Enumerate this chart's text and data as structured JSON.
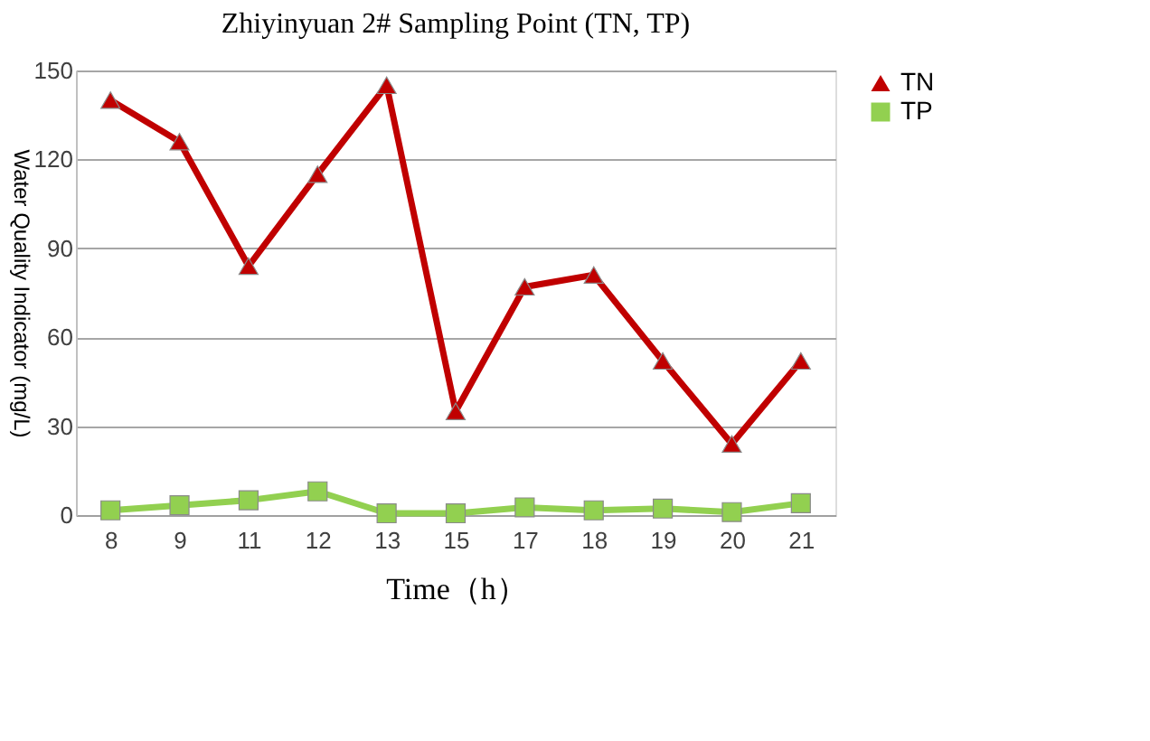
{
  "chart_data": {
    "type": "line",
    "title": "Zhiyinyuan 2# Sampling Point (TN, TP)",
    "xlabel": "Time（h）",
    "ylabel": "Water Quality Indicator (mg/L)",
    "categories": [
      "8",
      "9",
      "11",
      "12",
      "13",
      "15",
      "17",
      "18",
      "19",
      "20",
      "21"
    ],
    "series": [
      {
        "name": "TN",
        "color": "#c00000",
        "marker": "triangle",
        "values": [
          140,
          126,
          84,
          115,
          145,
          35,
          77,
          81,
          52,
          24,
          52
        ]
      },
      {
        "name": "TP",
        "color": "#92d050",
        "marker": "square",
        "values": [
          1.6,
          3.3,
          5,
          8,
          0.6,
          0.6,
          2.6,
          1.6,
          2.2,
          1,
          4
        ]
      }
    ],
    "ylim": [
      0,
      150
    ],
    "yticks": [
      0,
      30,
      60,
      90,
      120,
      150
    ],
    "grid": "y",
    "legend": "right",
    "line_style": "solid"
  }
}
